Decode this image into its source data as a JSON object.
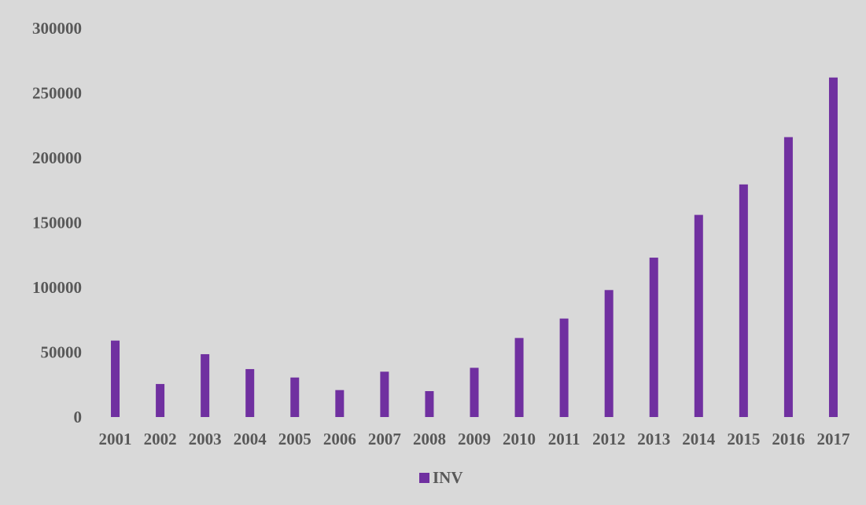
{
  "chart_data": {
    "type": "bar",
    "title": "",
    "xlabel": "",
    "ylabel": "",
    "categories": [
      "2001",
      "2002",
      "2003",
      "2004",
      "2005",
      "2006",
      "2007",
      "2008",
      "2009",
      "2010",
      "2011",
      "2012",
      "2013",
      "2014",
      "2015",
      "2016",
      "2017"
    ],
    "series": [
      {
        "name": "INV",
        "color": "#7030a0",
        "values": [
          59000,
          25500,
          48500,
          37000,
          30500,
          20800,
          35000,
          20000,
          38000,
          61000,
          76000,
          98000,
          123000,
          156000,
          179500,
          216000,
          262000
        ]
      }
    ],
    "ylim": [
      0,
      300000
    ],
    "yticks": [
      0,
      50000,
      100000,
      150000,
      200000,
      250000,
      300000
    ],
    "grid": false,
    "legend_position": "bottom",
    "background_color": "#d9d9d9"
  }
}
